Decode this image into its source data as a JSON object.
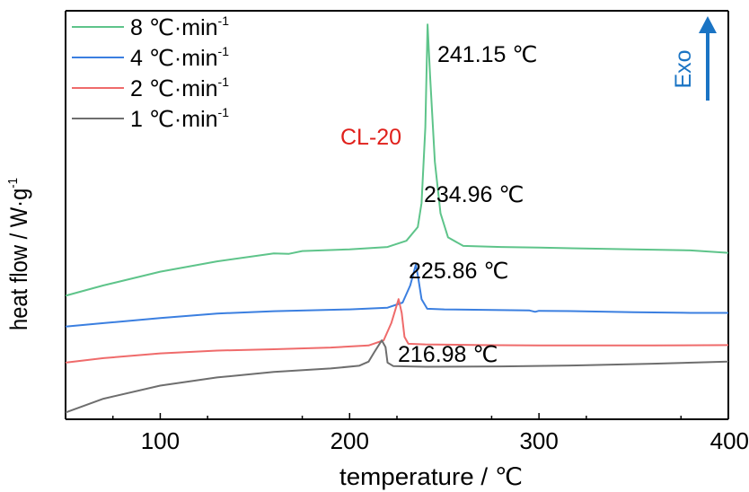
{
  "colors": {
    "axis": "#000000",
    "sample": "#e0201b",
    "exo": "#1a74c4"
  },
  "chart_data": {
    "type": "line",
    "xlabel": "temperature / ℃",
    "ylabel": "heat flow / W·g",
    "ylabel_sup": "-1",
    "xlim": [
      50,
      400
    ],
    "xticks": [
      "100",
      "200",
      "300",
      "400"
    ],
    "sample_label": "CL-20",
    "exo_label": "Exo",
    "series": [
      {
        "name": "8 ℃·min",
        "name_sup": "-1",
        "color": "#5ec48a",
        "peak_label": "241.15 ℃",
        "points": [
          [
            50,
            21
          ],
          [
            70,
            24
          ],
          [
            100,
            28
          ],
          [
            130,
            31
          ],
          [
            160,
            33.3
          ],
          [
            168,
            33.2
          ],
          [
            175,
            34
          ],
          [
            200,
            34.5
          ],
          [
            220,
            35.2
          ],
          [
            230,
            37
          ],
          [
            236,
            41
          ],
          [
            238,
            48
          ],
          [
            240,
            70
          ],
          [
            241.15,
            100
          ],
          [
            242.5,
            85
          ],
          [
            245,
            60
          ],
          [
            248,
            45
          ],
          [
            252,
            38
          ],
          [
            260,
            35.5
          ],
          [
            280,
            35.2
          ],
          [
            300,
            35
          ],
          [
            320,
            34.8
          ],
          [
            350,
            34.5
          ],
          [
            380,
            34.2
          ],
          [
            400,
            33.5
          ]
        ]
      },
      {
        "name": "4 ℃·min",
        "name_sup": "-1",
        "color": "#3b7fe0",
        "peak_label": "234.96 ℃",
        "points": [
          [
            50,
            12
          ],
          [
            70,
            13
          ],
          [
            100,
            14.5
          ],
          [
            130,
            15.8
          ],
          [
            160,
            16.5
          ],
          [
            200,
            17
          ],
          [
            220,
            17.5
          ],
          [
            228,
            19
          ],
          [
            232,
            24
          ],
          [
            234.96,
            30
          ],
          [
            236,
            27
          ],
          [
            238,
            20
          ],
          [
            241,
            17.2
          ],
          [
            250,
            17
          ],
          [
            280,
            16.8
          ],
          [
            295,
            16.7
          ],
          [
            298,
            16.3
          ],
          [
            300,
            16.6
          ],
          [
            320,
            16.5
          ],
          [
            350,
            16.2
          ],
          [
            380,
            16
          ],
          [
            400,
            16
          ]
        ]
      },
      {
        "name": "2 ℃·min",
        "name_sup": "-1",
        "color": "#ef6b6b",
        "peak_label": "225.86 ℃",
        "points": [
          [
            50,
            1.5
          ],
          [
            70,
            2.8
          ],
          [
            100,
            4.2
          ],
          [
            130,
            5
          ],
          [
            160,
            5.4
          ],
          [
            190,
            5.9
          ],
          [
            210,
            6.5
          ],
          [
            218,
            8
          ],
          [
            222,
            13
          ],
          [
            225.86,
            20
          ],
          [
            227.5,
            16
          ],
          [
            229,
            9
          ],
          [
            231,
            7
          ],
          [
            240,
            6.8
          ],
          [
            270,
            6.6
          ],
          [
            300,
            6.5
          ],
          [
            330,
            6.5
          ],
          [
            360,
            6.5
          ],
          [
            400,
            6.6
          ]
        ]
      },
      {
        "name": "1 ℃·min",
        "name_sup": "-1",
        "color": "#6e6e6e",
        "peak_label": "216.98 ℃",
        "points": [
          [
            50,
            -13
          ],
          [
            70,
            -9
          ],
          [
            100,
            -5.2
          ],
          [
            130,
            -2.8
          ],
          [
            160,
            -1.2
          ],
          [
            190,
            -0.2
          ],
          [
            205,
            0.6
          ],
          [
            210,
            1.8
          ],
          [
            213,
            4.5
          ],
          [
            216.98,
            8
          ],
          [
            219,
            6
          ],
          [
            220,
            1.5
          ],
          [
            223,
            0.5
          ],
          [
            240,
            0.3
          ],
          [
            280,
            0.4
          ],
          [
            320,
            0.7
          ],
          [
            360,
            1.2
          ],
          [
            400,
            1.8
          ]
        ]
      }
    ]
  }
}
